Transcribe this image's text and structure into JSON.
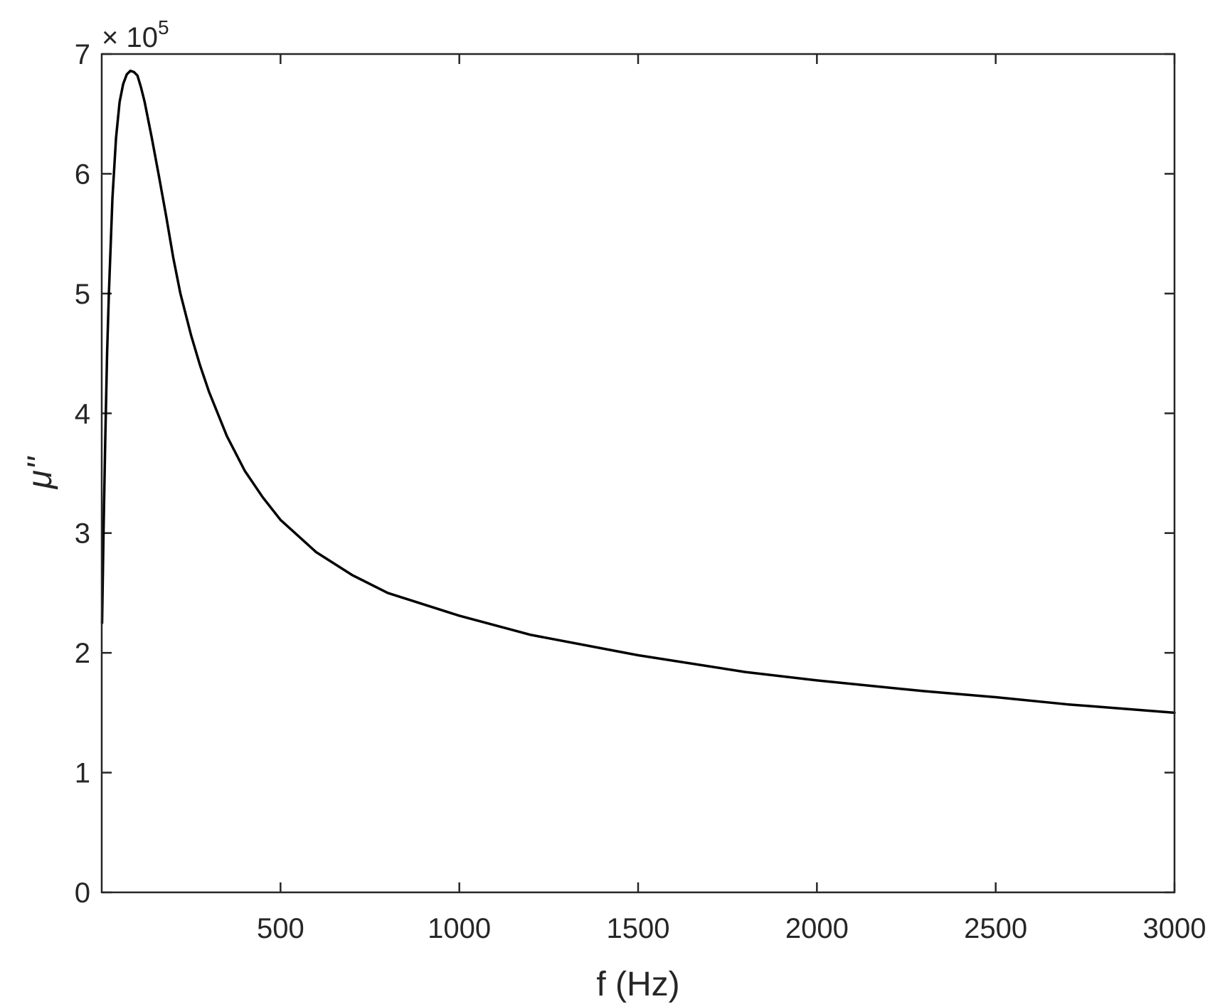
{
  "chart_data": {
    "type": "line",
    "title": "",
    "xlabel": "f (Hz)",
    "ylabel": "μ''",
    "y_exponent_label": {
      "base": "× 10",
      "power": "5"
    },
    "xlim": [
      1,
      3000
    ],
    "ylim": [
      0,
      700000
    ],
    "x_ticks": [
      500,
      1000,
      1500,
      2000,
      2500,
      3000
    ],
    "y_ticks": [
      0,
      100000,
      200000,
      300000,
      400000,
      500000,
      600000,
      700000
    ],
    "x_tick_labels": [
      "500",
      "1000",
      "1500",
      "2000",
      "2500",
      "3000"
    ],
    "y_tick_labels": [
      "0",
      "1",
      "2",
      "3",
      "4",
      "5",
      "6",
      "7"
    ],
    "grid": false,
    "line_color": "#000000",
    "axis_color": "#262626",
    "series": [
      {
        "x": [
          1,
          5,
          10,
          15,
          20,
          30,
          40,
          50,
          60,
          70,
          80,
          90,
          100,
          110,
          120,
          140,
          160,
          180,
          200,
          220,
          250,
          275,
          300,
          350,
          400,
          450,
          500,
          600,
          700,
          800,
          1000,
          1200,
          1500,
          1800,
          2000,
          2300,
          2500,
          2700,
          3000
        ],
        "y": [
          225000,
          300000,
          380000,
          450000,
          500000,
          580000,
          630000,
          660000,
          675000,
          683000,
          686000,
          685000,
          682000,
          672000,
          660000,
          630000,
          598000,
          565000,
          530000,
          500000,
          465000,
          440000,
          418000,
          381000,
          352000,
          330000,
          311000,
          284000,
          265000,
          250000,
          231000,
          215000,
          198000,
          184000,
          177000,
          168000,
          163000,
          157000,
          150000
        ]
      }
    ]
  }
}
